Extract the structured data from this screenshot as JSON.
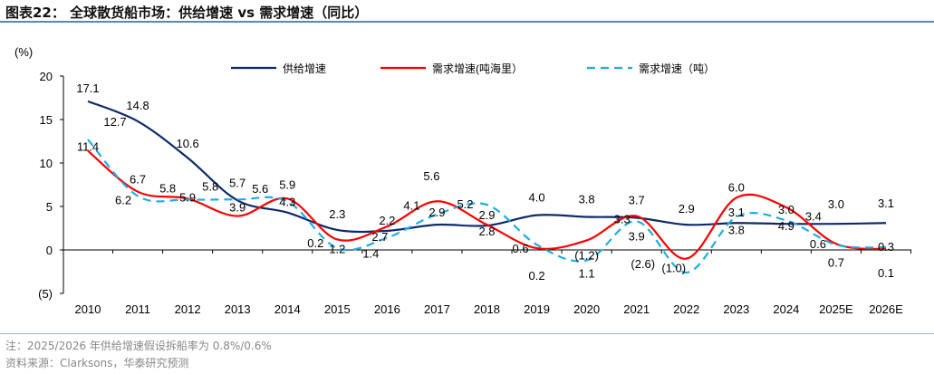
{
  "title": "图表22：  全球散货船市场：供给增速 vs 需求增速（同比）",
  "note": "注：2025/2026 年供给增速假设拆船率为 0.8%/0.6%",
  "source": "资料来源：Clarksons，华泰研究预测",
  "chart_data": {
    "type": "line",
    "ylabel": "(%)",
    "ylim": [
      -5,
      20
    ],
    "yticks": [
      "20",
      "15",
      "10",
      "5",
      "0",
      "(5)"
    ],
    "yticks_values": [
      20,
      15,
      10,
      5,
      0,
      -5
    ],
    "grid": false,
    "legend": "top",
    "categories": [
      "2010",
      "2011",
      "2012",
      "2013",
      "2014",
      "2015",
      "2016",
      "2017",
      "2018",
      "2019",
      "2020",
      "2021",
      "2022",
      "2023",
      "2024",
      "2025E",
      "2026E"
    ],
    "series": [
      {
        "name": "供给增速",
        "color": "#0e2a6b",
        "dash": false,
        "values": [
          17.1,
          14.8,
          10.6,
          5.7,
          4.3,
          2.3,
          2.2,
          2.9,
          2.8,
          4.0,
          3.8,
          3.7,
          2.9,
          3.1,
          3.0,
          3.0,
          3.1
        ],
        "labels": [
          "17.1",
          "14.8",
          "10.6",
          "5.7",
          "4.3",
          "2.3",
          "2.2",
          "2.9",
          "2.8",
          "4.0",
          "3.8",
          "3.7",
          "2.9",
          "3.1",
          "3.0",
          "3.0",
          "3.1"
        ]
      },
      {
        "name": "需求增速(吨海里）",
        "color": "#ff0000",
        "dash": false,
        "values": [
          11.4,
          6.7,
          5.9,
          3.9,
          5.9,
          1.2,
          2.7,
          5.6,
          2.9,
          0.2,
          1.1,
          3.9,
          -1.0,
          6.0,
          4.9,
          0.7,
          0.1
        ],
        "labels": [
          "11.4",
          "6.7",
          "5.9",
          "3.9",
          "5.9",
          "1.2",
          "2.7",
          "5.6",
          "2.9",
          "0.2",
          "1.1",
          "3.9",
          "(1.0)",
          "6.0",
          "4.9",
          "0.7",
          "0.1"
        ]
      },
      {
        "name": "需求增速（吨）",
        "color": "#1aaee8",
        "dash": true,
        "values": [
          12.7,
          6.2,
          5.8,
          5.8,
          5.6,
          0.2,
          1.4,
          4.1,
          5.2,
          0.6,
          -1.2,
          3.3,
          -2.6,
          3.8,
          3.4,
          0.6,
          0.3
        ],
        "labels": [
          "12.7",
          "6.2",
          "5.8",
          "5.8",
          "5.6",
          "0.2",
          "1.4",
          "4.1",
          "5.2",
          "0.6",
          "(1.2)",
          "3.3",
          "(2.6)",
          "3.8",
          "3.4",
          "0.6",
          "0.3"
        ]
      }
    ]
  }
}
